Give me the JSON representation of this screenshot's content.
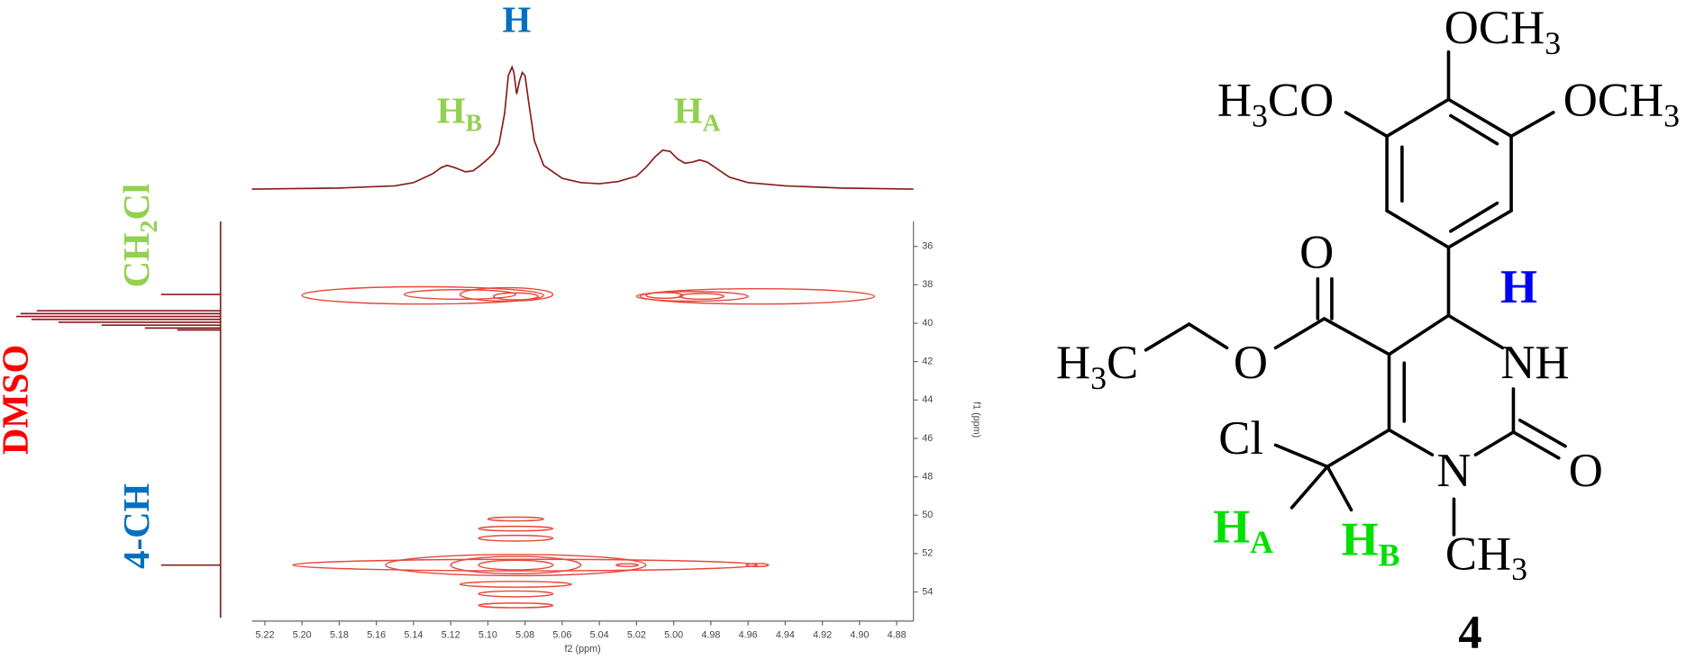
{
  "chart_data": {
    "type": "contour",
    "xlabel": "f2 (ppm)",
    "ylabel": "f1 (ppm)",
    "xlim": [
      5.227,
      4.871
    ],
    "ylim": [
      34.7,
      55.35
    ],
    "xticks": [
      5.22,
      {
        "value": 5.2,
        "label": "5.20"
      },
      5.18,
      5.16,
      5.14,
      5.12,
      {
        "value": 5.1,
        "label": "5.10"
      },
      5.08,
      5.06,
      5.04,
      5.02,
      {
        "value": 5,
        "label": "5.00"
      },
      4.98,
      4.96,
      4.94,
      4.92,
      {
        "value": 4.9,
        "label": "4.90"
      },
      4.88
    ],
    "yticks": [
      36,
      38,
      40,
      42,
      44,
      46,
      48,
      50,
      52,
      54
    ],
    "color": "#e8483a",
    "contours": [
      {
        "x": 5.135,
        "y": 38.55,
        "rx": 0.065,
        "ry": 0.45
      },
      {
        "x": 5.115,
        "y": 38.5,
        "rx": 0.03,
        "ry": 0.25
      },
      {
        "x": 5.09,
        "y": 38.5,
        "rx": 0.025,
        "ry": 0.35
      },
      {
        "x": 5.085,
        "y": 38.6,
        "rx": 0.012,
        "ry": 0.18
      },
      {
        "x": 4.955,
        "y": 38.6,
        "rx": 0.063,
        "ry": 0.4
      },
      {
        "x": 4.99,
        "y": 38.6,
        "rx": 0.03,
        "ry": 0.25
      },
      {
        "x": 5.005,
        "y": 38.55,
        "rx": 0.01,
        "ry": 0.15
      },
      {
        "x": 4.985,
        "y": 38.6,
        "rx": 0.012,
        "ry": 0.15
      },
      {
        "x": 5.08,
        "y": 52.6,
        "rx": 0.125,
        "ry": 0.3
      },
      {
        "x": 5.085,
        "y": 52.6,
        "rx": 0.07,
        "ry": 0.55
      },
      {
        "x": 5.085,
        "y": 52.6,
        "rx": 0.035,
        "ry": 0.45
      },
      {
        "x": 5.085,
        "y": 52.6,
        "rx": 0.02,
        "ry": 0.25
      },
      {
        "x": 5.085,
        "y": 51.2,
        "rx": 0.02,
        "ry": 0.15
      },
      {
        "x": 5.085,
        "y": 50.7,
        "rx": 0.02,
        "ry": 0.12
      },
      {
        "x": 5.085,
        "y": 50.2,
        "rx": 0.015,
        "ry": 0.1
      },
      {
        "x": 5.085,
        "y": 53.6,
        "rx": 0.03,
        "ry": 0.15
      },
      {
        "x": 5.085,
        "y": 54.1,
        "rx": 0.02,
        "ry": 0.15
      },
      {
        "x": 5.085,
        "y": 54.7,
        "rx": 0.02,
        "ry": 0.12
      },
      {
        "x": 4.955,
        "y": 52.6,
        "rx": 0.006,
        "ry": 0.08
      },
      {
        "x": 5.025,
        "y": 52.6,
        "rx": 0.006,
        "ry": 0.07
      }
    ],
    "projection_f2": {
      "color": "#8b1c1c",
      "x": [
        5.227,
        5.18,
        5.15,
        5.14,
        5.13,
        5.125,
        5.122,
        5.118,
        5.112,
        5.108,
        5.104,
        5.1,
        5.097,
        5.094,
        5.091,
        5.089,
        5.087,
        5.086,
        5.0845,
        5.083,
        5.0815,
        5.08,
        5.078,
        5.075,
        5.07,
        5.06,
        5.05,
        5.04,
        5.03,
        5.02,
        5.015,
        5.01,
        5.006,
        5.002,
        4.998,
        4.994,
        4.99,
        4.986,
        4.982,
        4.976,
        4.97,
        4.96,
        4.94,
        4.91,
        4.871
      ],
      "values": [
        0,
        1,
        3,
        6,
        14,
        20,
        22,
        20,
        16,
        17,
        22,
        28,
        33,
        42,
        70,
        105,
        113,
        108,
        88,
        100,
        108,
        105,
        80,
        45,
        22,
        10,
        6,
        5,
        7,
        12,
        20,
        30,
        36,
        35,
        28,
        24,
        25,
        27,
        25,
        18,
        11,
        6,
        3,
        1,
        0
      ]
    },
    "projection_f1": {
      "color": "#8b1c1c",
      "y": [
        38.5,
        39.35,
        39.5,
        39.65,
        39.8,
        39.95,
        40.1,
        40.25,
        40.35,
        52.6
      ],
      "values": [
        55,
        170,
        185,
        189,
        175,
        150,
        110,
        70,
        40,
        55
      ]
    },
    "annotations": [
      {
        "text": "H",
        "color": "#0070c0"
      },
      {
        "text": "H",
        "sub": "B",
        "color": "#92d050"
      },
      {
        "text": "H",
        "sub": "A",
        "color": "#92d050"
      },
      {
        "text": "CH",
        "sub": "2",
        "after": "Cl",
        "color": "#92d050"
      },
      {
        "text": "DMSO",
        "color": "#ff0000"
      },
      {
        "text": "4-CH",
        "color": "#0070c0"
      }
    ]
  },
  "structure": {
    "labels": [
      {
        "text": "OCH",
        "sub": "3"
      },
      {
        "text": "H",
        "sub": "3",
        "after": "CO"
      },
      {
        "text": "OCH",
        "sub": "3"
      },
      {
        "text": "O"
      },
      {
        "text": "H",
        "color": "#0000ff"
      },
      {
        "text": "H",
        "sub": "3",
        "after": "C"
      },
      {
        "text": "O"
      },
      {
        "text": "NH"
      },
      {
        "text": "Cl"
      },
      {
        "text": "O"
      },
      {
        "text": "N"
      },
      {
        "text": "H",
        "sub": "A",
        "color": "#00e000"
      },
      {
        "text": "H",
        "sub": "B",
        "color": "#00e000"
      },
      {
        "text": "CH",
        "sub": "3"
      }
    ],
    "compound_number": "4"
  }
}
